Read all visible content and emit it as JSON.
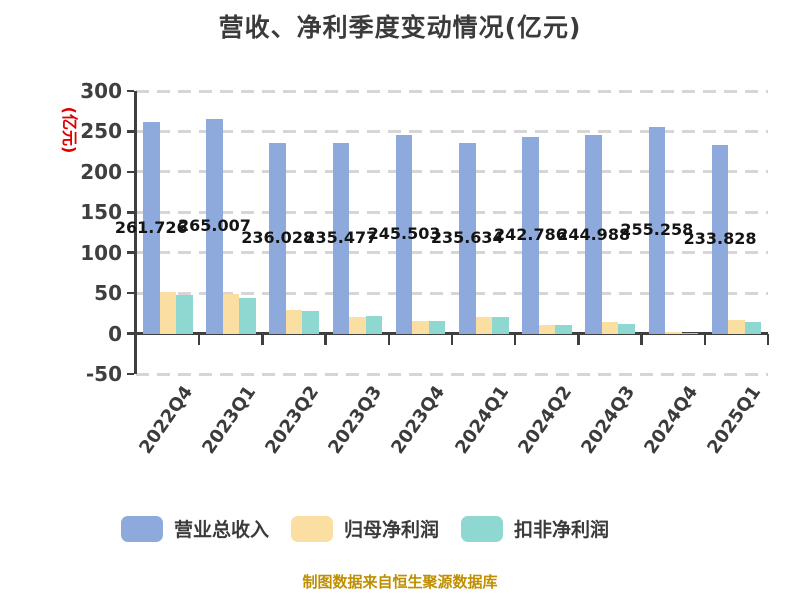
{
  "title": "营收、净利季度变动情况(亿元)",
  "y_axis_label": "(亿元)",
  "footer": "制图数据来自恒生聚源数据库",
  "colors": {
    "background": "#FFFFFF",
    "title_text": "#3B3B3B",
    "axis_text": "#3F3F3F",
    "axis_line": "#3F3F3F",
    "gridline": "#D6D6D6",
    "data_label_text": "#141414",
    "y_axis_label_text": "#E00000",
    "footer_text": "#BF8F00",
    "series_revenue": "#8EA9DB",
    "series_net_profit": "#FBDFA2",
    "series_non_gaap": "#8FD8D2"
  },
  "chart_data": {
    "type": "bar",
    "title": "营收、净利季度变动情况(亿元)",
    "ylabel": "(亿元)",
    "categories": [
      "2022Q4",
      "2023Q1",
      "2023Q2",
      "2023Q3",
      "2023Q4",
      "2024Q1",
      "2024Q2",
      "2024Q3",
      "2024Q4",
      "2025Q1"
    ],
    "series": [
      {
        "name": "营业总收入",
        "key": "total-revenue",
        "color": "#8EA9DB",
        "values": [
          261.726,
          265.007,
          236.028,
          235.477,
          245.503,
          235.634,
          242.786,
          244.988,
          255.258,
          233.828
        ],
        "labels_visible": true,
        "label_decimals": 3
      },
      {
        "name": "归母净利润",
        "key": "net-profit-attributable",
        "color": "#FBDFA2",
        "values": [
          51.1,
          48.8,
          28.9,
          20.6,
          15.1,
          21.1,
          10.7,
          14.6,
          2.5,
          17.3
        ],
        "labels_visible": false
      },
      {
        "name": "扣非净利润",
        "key": "non-gaap-net-profit",
        "color": "#8FD8D2",
        "values": [
          48.3,
          44.4,
          28.5,
          21.8,
          15.0,
          21.0,
          10.5,
          11.9,
          0.8,
          14.7
        ],
        "labels_visible": false
      }
    ],
    "ylim": [
      -50,
      300
    ],
    "yticks": [
      300,
      250,
      200,
      150,
      100,
      50,
      0,
      -50
    ],
    "grid": "horizontal-dashed",
    "legend_position": "bottom"
  }
}
